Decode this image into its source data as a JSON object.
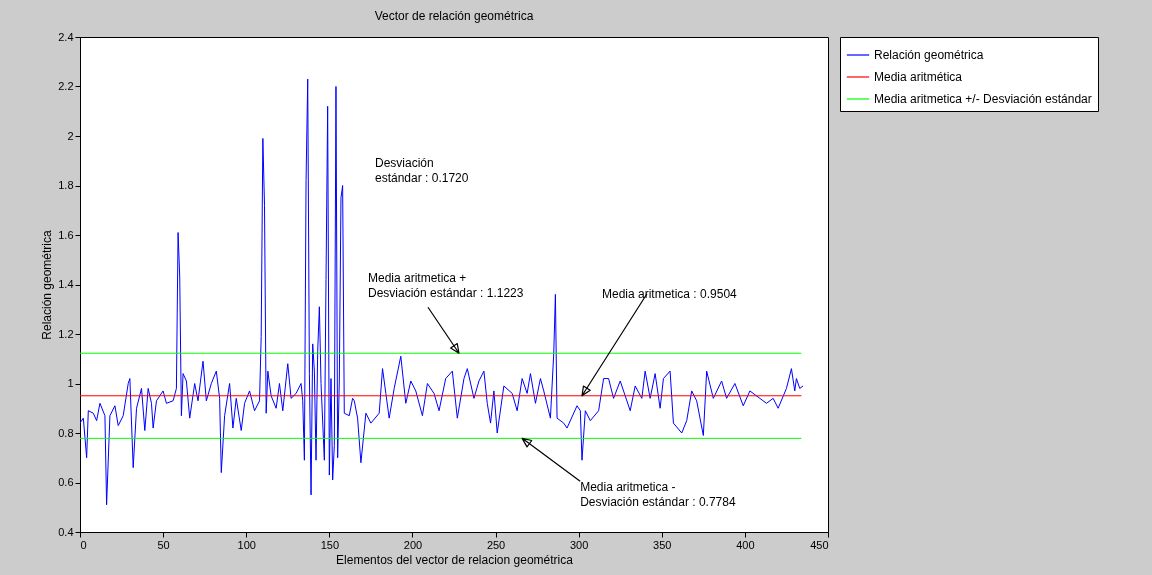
{
  "chart_data": {
    "type": "line",
    "title": "Vector de relación geométrica",
    "xlabel": "Elementos del vector de relacion geométrica",
    "ylabel": "Relación geométrica",
    "xlim": [
      0,
      450
    ],
    "xticks": [
      0,
      50,
      100,
      150,
      200,
      250,
      300,
      350,
      400,
      450
    ],
    "ylim": [
      0.4,
      2.4
    ],
    "yticks": [
      0.4,
      0.6,
      0.8,
      1,
      1.2,
      1.4,
      1.6,
      1.8,
      2,
      2.2,
      2.4
    ],
    "legend": "right",
    "series": [
      {
        "name": "Relación geométrica",
        "color": "#0000ff",
        "x": [
          0,
          2,
          4,
          5,
          8,
          10,
          12,
          15,
          16,
          18,
          21,
          23,
          26,
          29,
          30,
          32,
          34,
          37,
          39,
          41,
          43,
          44,
          46,
          50,
          52,
          56,
          58,
          59,
          60,
          61,
          62,
          64,
          66,
          69,
          71,
          74,
          76,
          79,
          82,
          84,
          85,
          87,
          90,
          92,
          94,
          97,
          99,
          102,
          105,
          108,
          109,
          110,
          111,
          112,
          113,
          115,
          118,
          120,
          122,
          125,
          127,
          130,
          133,
          134,
          135,
          136,
          137,
          138,
          139,
          140,
          141,
          142,
          143,
          144,
          145,
          147,
          148,
          149,
          150,
          151,
          152,
          153,
          154,
          155,
          156,
          157,
          158,
          159,
          162,
          164,
          165,
          167,
          169,
          172,
          175,
          180,
          182,
          184,
          186,
          189,
          193,
          196,
          199,
          202,
          206,
          209,
          213,
          216,
          220,
          224,
          227,
          231,
          233,
          237,
          240,
          243,
          245,
          247,
          249,
          251,
          255,
          260,
          263,
          266,
          269,
          271,
          274,
          277,
          279,
          283,
          285,
          286,
          287,
          291,
          293,
          299,
          301,
          302,
          304,
          307,
          312,
          315,
          318,
          321,
          325,
          331,
          334,
          338,
          340,
          343,
          346,
          349,
          351,
          355,
          357,
          362,
          365,
          368,
          371,
          375,
          377,
          381,
          386,
          389,
          394,
          399,
          403,
          409,
          413,
          417,
          420,
          425,
          428,
          430,
          431,
          433,
          435
        ],
        "values": [
          0.84,
          0.86,
          0.7,
          0.89,
          0.88,
          0.85,
          0.92,
          0.87,
          0.51,
          0.87,
          0.91,
          0.83,
          0.87,
          1.0,
          1.02,
          0.66,
          0.9,
          0.98,
          0.81,
          0.98,
          0.92,
          0.82,
          0.93,
          0.97,
          0.92,
          0.93,
          0.98,
          1.61,
          1.43,
          0.87,
          1.04,
          1.01,
          0.86,
          1.0,
          0.93,
          1.09,
          0.93,
          1.0,
          1.05,
          0.94,
          0.64,
          0.87,
          1.0,
          0.82,
          0.94,
          0.81,
          0.92,
          0.97,
          0.89,
          0.93,
          1.19,
          1.99,
          1.72,
          0.88,
          1.05,
          0.95,
          0.9,
          1.0,
          0.89,
          1.08,
          0.94,
          0.96,
          1.0,
          0.93,
          0.69,
          1.82,
          2.23,
          1.04,
          0.55,
          1.16,
          1.05,
          0.69,
          1.13,
          1.31,
          1.0,
          0.69,
          1.42,
          2.12,
          0.63,
          1.02,
          0.61,
          0.75,
          2.2,
          0.7,
          1.01,
          1.75,
          1.8,
          0.88,
          0.87,
          0.94,
          0.93,
          0.86,
          0.68,
          0.88,
          0.84,
          0.88,
          1.06,
          0.96,
          0.86,
          0.98,
          1.11,
          0.92,
          1.01,
          0.97,
          0.87,
          1.0,
          0.96,
          0.89,
          1.02,
          1.05,
          0.86,
          1.02,
          1.06,
          0.94,
          1.01,
          1.05,
          0.92,
          0.84,
          0.97,
          0.8,
          0.99,
          0.96,
          0.89,
          1.02,
          0.96,
          1.04,
          0.92,
          1.02,
          0.97,
          0.86,
          1.12,
          1.36,
          0.86,
          0.84,
          0.82,
          0.91,
          0.89,
          0.69,
          0.89,
          0.85,
          0.89,
          1.02,
          1.02,
          0.94,
          1.01,
          0.89,
          0.99,
          0.94,
          1.05,
          0.94,
          1.04,
          0.9,
          1.02,
          1.05,
          0.84,
          0.8,
          0.85,
          0.97,
          0.93,
          0.79,
          1.05,
          0.94,
          1.01,
          0.94,
          1.0,
          0.91,
          0.97,
          0.94,
          0.92,
          0.94,
          0.9,
          0.98,
          1.06,
          0.97,
          1.02,
          0.98,
          0.99
        ]
      },
      {
        "name": "Media aritmética",
        "color": "#ff0000",
        "x": [
          0,
          434
        ],
        "values": [
          0.9504,
          0.9504
        ]
      },
      {
        "name": "Media aritmetica +/- Desviación estándar",
        "color": "#00ff00",
        "x": [
          0,
          434
        ],
        "values": [
          1.1223,
          1.1223
        ]
      },
      {
        "color": "#00ff00",
        "x": [
          0,
          434
        ],
        "values": [
          0.7784,
          0.7784
        ]
      }
    ],
    "annotations": [
      "Desviación\nestándar : 0.1720",
      {
        "text": "Media aritmetica +\nDesviación estándar : 1.1223",
        "x": 228,
        "y": 1.1223
      },
      {
        "text": "Media aritmetica  : 0.9504",
        "x": 302,
        "y": 0.9504
      },
      {
        "text": "Media aritmetica -\nDesviación estándar : 0.7784",
        "x": 266,
        "y": 0.7784
      }
    ]
  }
}
